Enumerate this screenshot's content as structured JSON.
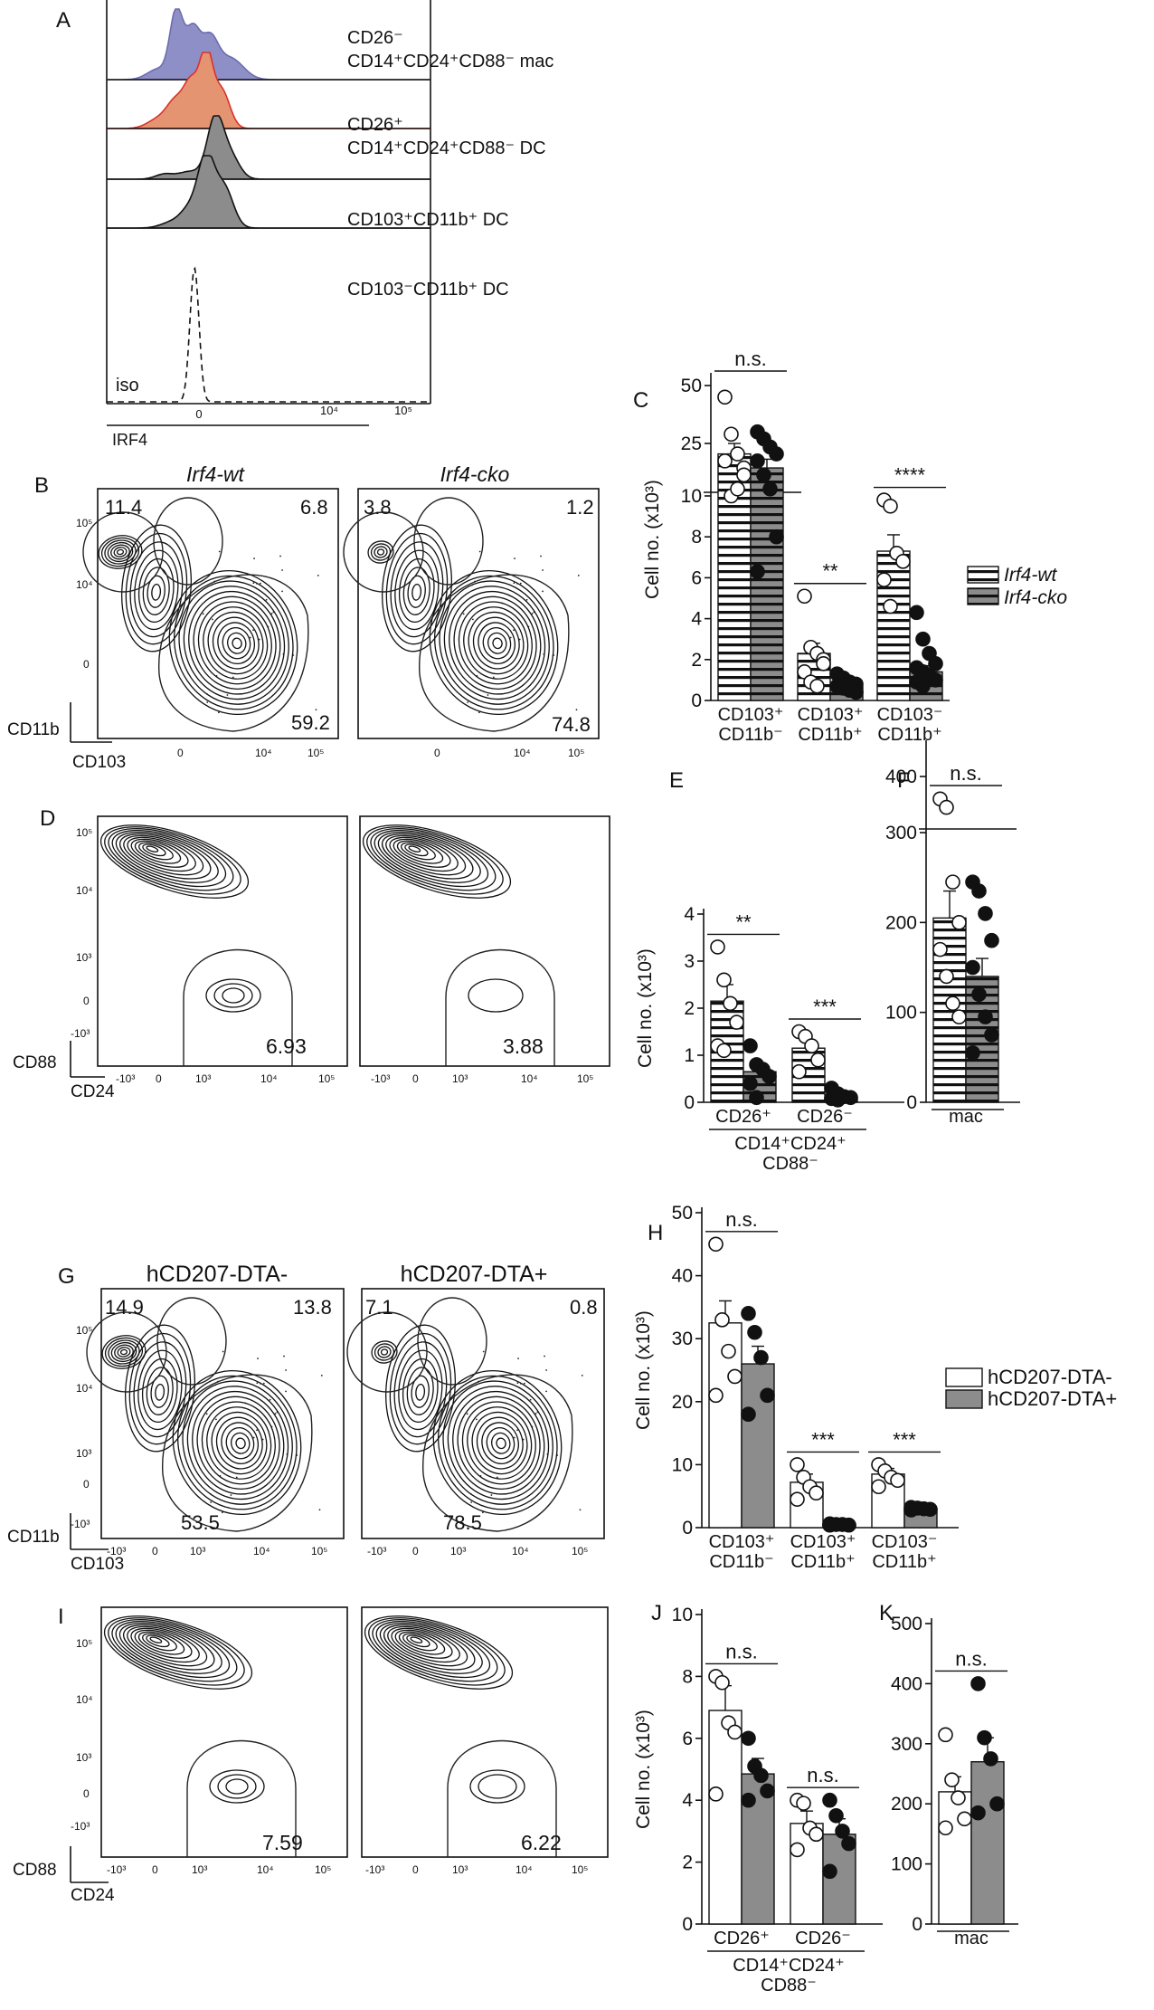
{
  "panels": {
    "A": {
      "letter": "A",
      "axis_label": "IRF4",
      "ticks": [
        "0",
        "10⁴",
        "10⁵"
      ],
      "iso_label": "iso",
      "tracks": [
        {
          "line1": "CD26⁻",
          "line2": "CD14⁺CD24⁺CD88⁻ mac",
          "color": "#8f8fc8"
        },
        {
          "line1": "CD26⁺",
          "line2": "CD14⁺CD24⁺CD88⁻ DC",
          "color": "#e59472"
        },
        {
          "line1": "CD103⁺CD11b⁺ DC",
          "line2": "",
          "color": "#8c8c8c"
        },
        {
          "line1": "CD103⁻CD11b⁺ DC",
          "line2": "",
          "color": "#8c8c8c"
        }
      ]
    },
    "B": {
      "letter": "B",
      "plots": [
        {
          "title": "Irf4-wt",
          "q_tl": "11.4",
          "q_tr": "6.8",
          "q_br": "59.2"
        },
        {
          "title": "Irf4-cko",
          "q_tl": "3.8",
          "q_tr": "1.2",
          "q_br": "74.8"
        }
      ],
      "y_label": "CD11b",
      "x_label": "CD103",
      "y_ticks": [
        "10⁵",
        "10⁴",
        "0"
      ],
      "x_ticks": [
        "0",
        "10⁴",
        "10⁵"
      ]
    },
    "D": {
      "letter": "D",
      "plots": [
        {
          "value": "6.93"
        },
        {
          "value": "3.88"
        }
      ],
      "y_label": "CD88",
      "x_label": "CD24",
      "y_ticks": [
        "10⁵",
        "10⁴",
        "10³",
        "0",
        "-10³"
      ],
      "x_ticks": [
        "-10³",
        "0",
        "10³",
        "10⁴",
        "10⁵"
      ]
    },
    "G": {
      "letter": "G",
      "plots": [
        {
          "title": "hCD207-DTA-",
          "q_tl": "14.9",
          "q_tr": "13.8",
          "q_br": "53.5"
        },
        {
          "title": "hCD207-DTA+",
          "q_tl": "7.1",
          "q_tr": "0.8",
          "q_br": "78.5"
        }
      ],
      "y_label": "CD11b",
      "x_label": "CD103",
      "y_ticks": [
        "10⁵",
        "10⁴",
        "10³",
        "0",
        "-10³"
      ],
      "x_ticks": [
        "-10³",
        "0",
        "10³",
        "10⁴",
        "10⁵"
      ]
    },
    "I": {
      "letter": "I",
      "plots": [
        {
          "value": "7.59"
        },
        {
          "value": "6.22"
        }
      ],
      "y_label": "CD88",
      "x_label": "CD24",
      "y_ticks": [
        "10⁵",
        "10⁴",
        "10³",
        "0",
        "-10³"
      ],
      "x_ticks": [
        "-10³",
        "0",
        "10³",
        "10⁴",
        "10⁵"
      ]
    }
  },
  "legends": {
    "irf4": {
      "wt": "Irf4-wt",
      "cko": "Irf4-cko"
    },
    "dta": {
      "neg": "hCD207-DTA-",
      "pos": "hCD207-DTA+"
    }
  },
  "colors": {
    "bar_fill_gray": "#8c8c8c",
    "mac_purple": "#8f8fc8",
    "dc_orange": "#e59472"
  },
  "chart_data": [
    {
      "panel": "C",
      "type": "bar",
      "ylabel": "Cell no. (x10³)",
      "hatched_bars": true,
      "broken_y_axis": true,
      "y_ticks": [
        0,
        2,
        4,
        6,
        8,
        10,
        25,
        50
      ],
      "categories": [
        "CD103⁺|CD11b⁻",
        "CD103⁺|CD11b⁺",
        "CD103⁻|CD11b⁺"
      ],
      "series": [
        {
          "name": "Irf4-wt",
          "values": [
            22,
            2.3,
            7.3
          ],
          "sem": [
            3,
            0.5,
            0.8
          ],
          "points": [
            [
              45,
              29,
              22,
              18,
              20,
              10,
              12,
              16
            ],
            [
              5.1,
              2.6,
              2.3,
              2.0,
              1.4,
              0.9,
              0.7,
              1.8
            ],
            [
              9.8,
              9.5,
              7.2,
              6.8,
              5.9,
              4.6
            ]
          ]
        },
        {
          "name": "Irf4-cko",
          "values": [
            18,
            0.7,
            1.4
          ],
          "sem": [
            2.5,
            0.2,
            0.3
          ],
          "points": [
            [
              30,
              27,
              24,
              22,
              20,
              16,
              12,
              8,
              6.3
            ],
            [
              1.3,
              1.1,
              0.9,
              0.8,
              0.7,
              0.6,
              0.5,
              0.4
            ],
            [
              4.3,
              3.0,
              2.3,
              1.8,
              1.6,
              1.4,
              1.2,
              1.0,
              0.9,
              0.7
            ]
          ]
        }
      ],
      "significance": [
        "n.s.",
        "**",
        "****"
      ]
    },
    {
      "panel": "E",
      "type": "bar",
      "ylabel": "Cell no. (x10³)",
      "hatched_bars": true,
      "ylim": [
        0,
        4
      ],
      "y_ticks": [
        0,
        1,
        2,
        3,
        4
      ],
      "categories": [
        "CD26⁺",
        "CD26⁻"
      ],
      "group_label": "CD14⁺CD24⁺|CD88⁻",
      "series": [
        {
          "name": "Irf4-wt",
          "values": [
            2.15,
            1.15
          ],
          "sem": [
            0.35,
            0.15
          ],
          "points": [
            [
              3.3,
              2.6,
              2.1,
              1.7,
              1.2,
              1.1
            ],
            [
              1.5,
              1.4,
              1.2,
              0.9,
              0.65
            ]
          ]
        },
        {
          "name": "Irf4-cko",
          "values": [
            0.65,
            0.1
          ],
          "sem": [
            0.15,
            0.03
          ],
          "points": [
            [
              1.2,
              0.8,
              0.7,
              0.55,
              0.4,
              0.1
            ],
            [
              0.3,
              0.18,
              0.12,
              0.1,
              0.08,
              0.05
            ]
          ]
        }
      ],
      "significance": [
        "**",
        "***"
      ]
    },
    {
      "panel": "F",
      "type": "bar",
      "hatched_bars": true,
      "broken_y_axis": true,
      "y_ticks": [
        0,
        100,
        200,
        300,
        400
      ],
      "categories": [
        "mac"
      ],
      "series": [
        {
          "name": "Irf4-wt",
          "values": [
            205
          ],
          "sem": [
            30
          ],
          "points": [
            [
              360,
              345,
              245,
              200,
              170,
              140,
              110,
              95
            ]
          ]
        },
        {
          "name": "Irf4-cko",
          "values": [
            140
          ],
          "sem": [
            20
          ],
          "points": [
            [
              245,
              235,
              210,
              180,
              150,
              120,
              95,
              75,
              55
            ]
          ]
        }
      ],
      "significance": [
        "n.s."
      ]
    },
    {
      "panel": "H",
      "type": "bar",
      "ylabel": "Cell no. (x10³)",
      "ylim": [
        0,
        50
      ],
      "y_ticks": [
        0,
        10,
        20,
        30,
        40,
        50
      ],
      "categories": [
        "CD103⁺|CD11b⁻",
        "CD103⁺|CD11b⁺",
        "CD103⁻|CD11b⁺"
      ],
      "series": [
        {
          "name": "hCD207-DTA-",
          "values": [
            32.5,
            7.2,
            8.5
          ],
          "sem": [
            3.5,
            1.3,
            0.9
          ],
          "points": [
            [
              45,
              33,
              28,
              24,
              21
            ],
            [
              10,
              8,
              6.5,
              5.5,
              4.5
            ],
            [
              10,
              9,
              8,
              7.5,
              6.5
            ]
          ]
        },
        {
          "name": "hCD207-DTA+",
          "values": [
            26,
            0.5,
            3
          ],
          "sem": [
            2.8,
            0.1,
            0.2
          ],
          "points": [
            [
              34,
              31,
              27,
              21,
              18
            ],
            [
              0.6,
              0.5,
              0.5,
              0.4,
              0.4
            ],
            [
              3.2,
              3.1,
              3,
              2.9,
              2.8
            ]
          ]
        }
      ],
      "significance": [
        "n.s.",
        "***",
        "***"
      ]
    },
    {
      "panel": "J",
      "type": "bar",
      "ylabel": "Cell no. (x10³)",
      "ylim": [
        0,
        10
      ],
      "y_ticks": [
        0,
        2,
        4,
        6,
        8,
        10
      ],
      "categories": [
        "CD26⁺",
        "CD26⁻"
      ],
      "group_label": "CD14⁺CD24⁺|CD88⁻",
      "series": [
        {
          "name": "hCD207-DTA-",
          "values": [
            6.9,
            3.25
          ],
          "sem": [
            0.8,
            0.4
          ],
          "points": [
            [
              8,
              7.8,
              6.5,
              6.2,
              4.2
            ],
            [
              4,
              3.9,
              3.1,
              2.9,
              2.4
            ]
          ]
        },
        {
          "name": "hCD207-DTA+",
          "values": [
            4.85,
            2.9
          ],
          "sem": [
            0.5,
            0.5
          ],
          "points": [
            [
              6,
              5.1,
              4.8,
              4.3,
              4
            ],
            [
              4,
              3.5,
              3,
              2.6,
              1.7
            ]
          ]
        }
      ],
      "significance": [
        "n.s.",
        "n.s."
      ]
    },
    {
      "panel": "K",
      "type": "bar",
      "ylim": [
        0,
        500
      ],
      "y_ticks": [
        0,
        100,
        200,
        300,
        400,
        500
      ],
      "categories": [
        "mac"
      ],
      "series": [
        {
          "name": "hCD207-DTA-",
          "values": [
            220
          ],
          "sem": [
            25
          ],
          "points": [
            [
              315,
              240,
              210,
              175,
              160
            ]
          ]
        },
        {
          "name": "hCD207-DTA+",
          "values": [
            270
          ],
          "sem": [
            40
          ],
          "points": [
            [
              400,
              310,
              275,
              200,
              185
            ]
          ]
        }
      ],
      "significance": [
        "n.s."
      ]
    }
  ]
}
